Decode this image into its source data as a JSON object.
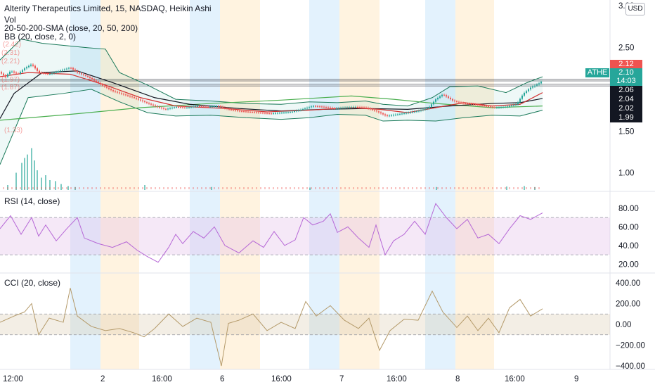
{
  "header": {
    "title": "Alterity Therapeutics Limited, 15, NASDAQ, Heikin Ashi",
    "vol_label": "Vol",
    "sma_label": "20-50-200-SMA (close, 20, 50, 200)",
    "bb_label": "BB (20, close, 2, 0)",
    "currency_button": "USD"
  },
  "faint_labels": [
    "(2.42)",
    "(2.31)",
    "(2.21)",
    "(1.97)",
    "(1.87)",
    "(1.33)"
  ],
  "price_badges": {
    "ticker": "ATHE",
    "last": "2.10",
    "countdown": "14:03",
    "upper": "2.12",
    "b1": "2.06",
    "b2": "2.04",
    "b3": "2.02",
    "b4": "1.99"
  },
  "rsi_label": "RSI (14, close)",
  "cci_label": "CCI (20, close)",
  "colors": {
    "up": "#26a69a",
    "down": "#ef5350",
    "sma20": "#d32f2f",
    "sma50": "#131722",
    "sma200": "#4caf50",
    "bb": "#1b7a5a",
    "rsi": "#b667d6",
    "cci": "#b49a6a",
    "blue_band": "#e3f2fd",
    "orange_band": "#fff3e0"
  },
  "chart_data": [
    {
      "type": "candlestick",
      "title": "Alterity Therapeutics Limited, 15, NASDAQ, Heikin Ashi",
      "y_ticks": [
        3.0,
        2.5,
        1.5,
        1.0
      ],
      "y_tick_labels": [
        "3.00",
        "2.50",
        "1.50",
        "1.00"
      ],
      "ylim": [
        0.88,
        3.05
      ],
      "x_tick_labels": [
        "12:00",
        "2",
        "16:00",
        "6",
        "16:00",
        "7",
        "16:00",
        "8",
        "16:00",
        "9"
      ],
      "close_path": [
        [
          0,
          2.2
        ],
        [
          8,
          2.15
        ],
        [
          15,
          2.22
        ],
        [
          25,
          2.18
        ],
        [
          35,
          2.25
        ],
        [
          45,
          2.3
        ],
        [
          55,
          2.2
        ],
        [
          70,
          2.18
        ],
        [
          85,
          2.22
        ],
        [
          100,
          2.26
        ],
        [
          110,
          2.2
        ],
        [
          125,
          2.15
        ],
        [
          135,
          2.1
        ],
        [
          145,
          2.05
        ],
        [
          160,
          1.98
        ],
        [
          175,
          1.94
        ],
        [
          190,
          1.9
        ],
        [
          205,
          1.85
        ],
        [
          220,
          1.8
        ],
        [
          235,
          1.76
        ],
        [
          250,
          1.79
        ],
        [
          265,
          1.78
        ],
        [
          280,
          1.8
        ],
        [
          295,
          1.79
        ],
        [
          310,
          1.8
        ],
        [
          325,
          1.76
        ],
        [
          340,
          1.74
        ],
        [
          355,
          1.73
        ],
        [
          370,
          1.72
        ],
        [
          385,
          1.71
        ],
        [
          400,
          1.72
        ],
        [
          415,
          1.73
        ],
        [
          430,
          1.76
        ],
        [
          445,
          1.8
        ],
        [
          460,
          1.79
        ],
        [
          475,
          1.77
        ],
        [
          490,
          1.78
        ],
        [
          505,
          1.79
        ],
        [
          520,
          1.78
        ],
        [
          535,
          1.74
        ],
        [
          550,
          1.68
        ],
        [
          565,
          1.7
        ],
        [
          580,
          1.72
        ],
        [
          595,
          1.74
        ],
        [
          610,
          1.78
        ],
        [
          620,
          1.88
        ],
        [
          630,
          1.94
        ],
        [
          645,
          1.86
        ],
        [
          660,
          1.83
        ],
        [
          675,
          1.82
        ],
        [
          690,
          1.8
        ],
        [
          705,
          1.78
        ],
        [
          720,
          1.79
        ],
        [
          735,
          1.82
        ],
        [
          745,
          1.95
        ],
        [
          755,
          2.02
        ],
        [
          765,
          2.06
        ],
        [
          772,
          2.1
        ]
      ],
      "sma20": [
        [
          0,
          2.15
        ],
        [
          40,
          2.2
        ],
        [
          100,
          2.18
        ],
        [
          150,
          2.05
        ],
        [
          200,
          1.9
        ],
        [
          250,
          1.8
        ],
        [
          320,
          1.77
        ],
        [
          380,
          1.73
        ],
        [
          440,
          1.75
        ],
        [
          500,
          1.78
        ],
        [
          540,
          1.76
        ],
        [
          580,
          1.72
        ],
        [
          620,
          1.78
        ],
        [
          660,
          1.84
        ],
        [
          700,
          1.8
        ],
        [
          740,
          1.82
        ],
        [
          772,
          1.96
        ]
      ],
      "sma50": [
        [
          0,
          1.65
        ],
        [
          20,
          1.95
        ],
        [
          60,
          2.2
        ],
        [
          110,
          2.22
        ],
        [
          160,
          2.08
        ],
        [
          220,
          1.9
        ],
        [
          270,
          1.82
        ],
        [
          340,
          1.77
        ],
        [
          400,
          1.74
        ],
        [
          460,
          1.76
        ],
        [
          520,
          1.77
        ],
        [
          580,
          1.76
        ],
        [
          640,
          1.8
        ],
        [
          700,
          1.83
        ],
        [
          740,
          1.84
        ],
        [
          772,
          1.89
        ]
      ],
      "sma200": [
        [
          0,
          1.63
        ],
        [
          100,
          1.7
        ],
        [
          200,
          1.78
        ],
        [
          300,
          1.83
        ],
        [
          400,
          1.87
        ],
        [
          500,
          1.92
        ],
        [
          560,
          1.88
        ],
        [
          620,
          1.83
        ],
        [
          700,
          1.78
        ],
        [
          772,
          1.8
        ]
      ],
      "bb_upper": [
        [
          0,
          2.35
        ],
        [
          30,
          2.6
        ],
        [
          60,
          2.55
        ],
        [
          120,
          2.5
        ],
        [
          150,
          2.48
        ],
        [
          170,
          2.2
        ],
        [
          210,
          2.05
        ],
        [
          250,
          1.88
        ],
        [
          300,
          1.86
        ],
        [
          350,
          1.83
        ],
        [
          400,
          1.82
        ],
        [
          440,
          1.85
        ],
        [
          480,
          1.84
        ],
        [
          520,
          1.86
        ],
        [
          545,
          1.82
        ],
        [
          580,
          1.8
        ],
        [
          615,
          1.9
        ],
        [
          640,
          2.03
        ],
        [
          680,
          2.04
        ],
        [
          720,
          1.96
        ],
        [
          750,
          2.08
        ],
        [
          772,
          2.15
        ]
      ],
      "bb_lower": [
        [
          0,
          1.1
        ],
        [
          40,
          1.9
        ],
        [
          90,
          1.95
        ],
        [
          130,
          2.0
        ],
        [
          170,
          1.85
        ],
        [
          210,
          1.72
        ],
        [
          250,
          1.68
        ],
        [
          300,
          1.69
        ],
        [
          350,
          1.66
        ],
        [
          400,
          1.64
        ],
        [
          440,
          1.66
        ],
        [
          480,
          1.7
        ],
        [
          520,
          1.69
        ],
        [
          545,
          1.62
        ],
        [
          580,
          1.63
        ],
        [
          620,
          1.62
        ],
        [
          660,
          1.66
        ],
        [
          700,
          1.69
        ],
        [
          740,
          1.68
        ],
        [
          772,
          1.75
        ]
      ],
      "volume_spikes": [
        [
          10,
          0.1
        ],
        [
          22,
          0.35
        ],
        [
          30,
          0.55
        ],
        [
          34,
          0.65
        ],
        [
          38,
          0.72
        ],
        [
          44,
          0.85
        ],
        [
          48,
          0.6
        ],
        [
          52,
          0.4
        ],
        [
          58,
          0.25
        ],
        [
          64,
          0.3
        ],
        [
          70,
          0.2
        ],
        [
          78,
          0.18
        ],
        [
          86,
          0.12
        ],
        [
          96,
          0.08
        ],
        [
          106,
          0.06
        ],
        [
          205,
          0.1
        ],
        [
          300,
          0.06
        ],
        [
          440,
          0.05
        ],
        [
          620,
          0.06
        ],
        [
          720,
          0.07
        ],
        [
          745,
          0.08
        ],
        [
          760,
          0.06
        ]
      ]
    },
    {
      "type": "line",
      "title": "RSI (14, close)",
      "y_ticks": [
        80,
        60,
        40,
        20
      ],
      "y_tick_labels": [
        "80.00",
        "60.00",
        "40.00",
        "20.00"
      ],
      "ylim": [
        12,
        92
      ],
      "band": [
        30,
        70
      ],
      "points": [
        [
          0,
          58
        ],
        [
          15,
          72
        ],
        [
          30,
          52
        ],
        [
          45,
          70
        ],
        [
          55,
          50
        ],
        [
          65,
          62
        ],
        [
          80,
          45
        ],
        [
          95,
          58
        ],
        [
          110,
          70
        ],
        [
          120,
          48
        ],
        [
          140,
          42
        ],
        [
          160,
          38
        ],
        [
          180,
          44
        ],
        [
          195,
          35
        ],
        [
          210,
          28
        ],
        [
          225,
          22
        ],
        [
          240,
          38
        ],
        [
          250,
          52
        ],
        [
          260,
          42
        ],
        [
          275,
          55
        ],
        [
          290,
          48
        ],
        [
          305,
          60
        ],
        [
          320,
          40
        ],
        [
          340,
          32
        ],
        [
          360,
          45
        ],
        [
          375,
          38
        ],
        [
          390,
          55
        ],
        [
          405,
          40
        ],
        [
          420,
          46
        ],
        [
          432,
          70
        ],
        [
          445,
          62
        ],
        [
          460,
          66
        ],
        [
          470,
          74
        ],
        [
          480,
          54
        ],
        [
          495,
          60
        ],
        [
          510,
          48
        ],
        [
          525,
          38
        ],
        [
          535,
          62
        ],
        [
          548,
          30
        ],
        [
          560,
          45
        ],
        [
          575,
          52
        ],
        [
          590,
          66
        ],
        [
          605,
          52
        ],
        [
          620,
          85
        ],
        [
          635,
          70
        ],
        [
          650,
          58
        ],
        [
          665,
          68
        ],
        [
          680,
          48
        ],
        [
          695,
          52
        ],
        [
          710,
          42
        ],
        [
          725,
          58
        ],
        [
          740,
          72
        ],
        [
          755,
          68
        ],
        [
          772,
          75
        ]
      ]
    },
    {
      "type": "line",
      "title": "CCI (20, close)",
      "y_ticks": [
        400,
        200,
        0,
        -200,
        -400
      ],
      "y_tick_labels": [
        "400.00",
        "200.00",
        "0.00",
        "−200.00",
        "−400.00"
      ],
      "ylim": [
        -440,
        440
      ],
      "band": [
        -100,
        100
      ],
      "points": [
        [
          0,
          20
        ],
        [
          20,
          80
        ],
        [
          35,
          120
        ],
        [
          45,
          200
        ],
        [
          55,
          -100
        ],
        [
          70,
          60
        ],
        [
          90,
          20
        ],
        [
          100,
          350
        ],
        [
          110,
          80
        ],
        [
          130,
          -20
        ],
        [
          150,
          -60
        ],
        [
          170,
          -40
        ],
        [
          190,
          -80
        ],
        [
          205,
          -120
        ],
        [
          220,
          -40
        ],
        [
          240,
          100
        ],
        [
          260,
          -20
        ],
        [
          280,
          60
        ],
        [
          300,
          20
        ],
        [
          315,
          -400
        ],
        [
          325,
          10
        ],
        [
          340,
          40
        ],
        [
          360,
          100
        ],
        [
          380,
          -60
        ],
        [
          400,
          20
        ],
        [
          420,
          -40
        ],
        [
          435,
          220
        ],
        [
          450,
          80
        ],
        [
          470,
          180
        ],
        [
          490,
          40
        ],
        [
          510,
          -40
        ],
        [
          525,
          60
        ],
        [
          540,
          -250
        ],
        [
          555,
          -60
        ],
        [
          575,
          50
        ],
        [
          595,
          40
        ],
        [
          615,
          320
        ],
        [
          630,
          120
        ],
        [
          650,
          -30
        ],
        [
          665,
          80
        ],
        [
          680,
          -60
        ],
        [
          695,
          60
        ],
        [
          710,
          -80
        ],
        [
          725,
          160
        ],
        [
          740,
          240
        ],
        [
          755,
          80
        ],
        [
          772,
          150
        ]
      ]
    }
  ]
}
